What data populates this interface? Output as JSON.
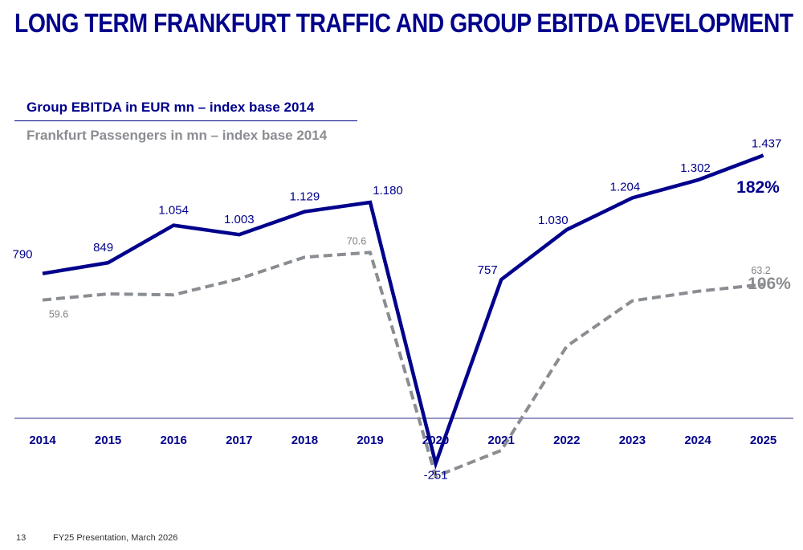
{
  "title": "LONG TERM FRANKFURT TRAFFIC AND GROUP EBITDA DEVELOPMENT",
  "footer": {
    "page_number": "13",
    "text": "FY25 Presentation, March 2026"
  },
  "colors": {
    "ebitda": "#00008c",
    "passengers": "#8a8d91"
  },
  "chart_data": {
    "type": "line",
    "categories": [
      "2014",
      "2015",
      "2016",
      "2017",
      "2018",
      "2019",
      "2020",
      "2021",
      "2022",
      "2023",
      "2024",
      "2025"
    ],
    "series": [
      {
        "name": "Group EBITDA in EUR mn – index base 2014",
        "values": [
          790,
          849,
          1054,
          1003,
          1129,
          1180,
          -251,
          757,
          1030,
          1204,
          1302,
          1437
        ],
        "labels": [
          "790",
          "849",
          "1.054",
          "1.003",
          "1.129",
          "1.180",
          "-251",
          "757",
          "1.030",
          "1.204",
          "1.302",
          "1.437"
        ],
        "end_annotation": "182%"
      },
      {
        "name": "Frankfurt Passengers in mn – index base 2014",
        "values": [
          59.6,
          61.0,
          60.8,
          64.5,
          69.5,
          70.6,
          18.8,
          24.8,
          48.9,
          59.4,
          61.6,
          63.2
        ],
        "labels": [
          "59.6",
          "",
          "",
          "",
          "",
          "70.6",
          "",
          "",
          "",
          "",
          "",
          "63.2"
        ],
        "end_annotation": "106%"
      }
    ],
    "grid": false,
    "legend": "top-left"
  }
}
